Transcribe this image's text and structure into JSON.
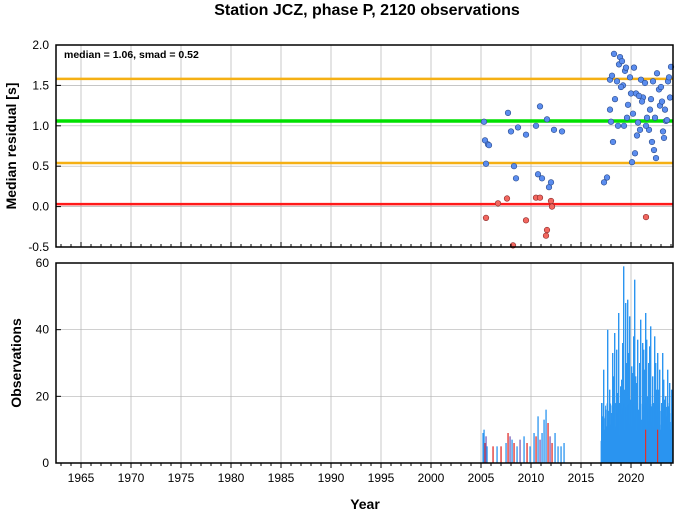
{
  "title": "Station JCZ, phase P, 2120 observations",
  "colors": {
    "median_line": "#00e000",
    "smad_lines": "#f5b014",
    "zero_line": "#ff1a1a",
    "point_blue": "#5b8def",
    "point_red": "#f2675f",
    "bar_blue": "#2b95f0",
    "bar_red": "#e0302c",
    "bar_purple": "#7a5fb8",
    "grid": "#b4b4b4"
  },
  "chart_data": [
    {
      "type": "scatter",
      "name": "median-residual-panel",
      "annotation": "median = 1.06, smad = 0.52",
      "ylabel": "Median residual [s]",
      "xlim": [
        1962.5,
        2024.2
      ],
      "ylim": [
        -0.5,
        2.0
      ],
      "yticks": [
        "-0.5",
        "0.0",
        "0.5",
        "1.0",
        "1.5",
        "2.0"
      ],
      "ytick_values": [
        -0.5,
        0.0,
        0.5,
        1.0,
        1.5,
        2.0
      ],
      "grid": true,
      "reference_lines": [
        {
          "kind": "median",
          "y": 1.06
        },
        {
          "kind": "median+smad",
          "y": 1.58
        },
        {
          "kind": "median-smad",
          "y": 0.54
        },
        {
          "kind": "zero",
          "y": 0.03
        }
      ],
      "blue_points": [
        [
          2005.3,
          1.05
        ],
        [
          2005.4,
          0.82
        ],
        [
          2005.5,
          0.53
        ],
        [
          2005.7,
          0.77
        ],
        [
          2005.8,
          0.76
        ],
        [
          2007.7,
          1.16
        ],
        [
          2008.0,
          0.93
        ],
        [
          2008.3,
          0.5
        ],
        [
          2008.5,
          0.35
        ],
        [
          2008.7,
          0.98
        ],
        [
          2009.5,
          0.89
        ],
        [
          2010.5,
          1.0
        ],
        [
          2010.7,
          0.4
        ],
        [
          2010.9,
          1.24
        ],
        [
          2011.1,
          0.35
        ],
        [
          2011.6,
          1.08
        ],
        [
          2011.8,
          0.24
        ],
        [
          2012.0,
          0.3
        ],
        [
          2012.3,
          0.95
        ],
        [
          2013.1,
          0.93
        ],
        [
          2017.3,
          0.3
        ],
        [
          2017.6,
          0.36
        ],
        [
          2017.9,
          1.57
        ],
        [
          2018.1,
          1.62
        ],
        [
          2018.3,
          1.89
        ],
        [
          2018.6,
          1.55
        ],
        [
          2018.8,
          1.76
        ],
        [
          2018.9,
          1.85
        ],
        [
          2019.1,
          1.8
        ],
        [
          2019.2,
          1.5
        ],
        [
          2019.4,
          1.68
        ],
        [
          2019.5,
          1.72
        ],
        [
          2019.7,
          1.26
        ],
        [
          2019.9,
          1.6
        ],
        [
          2020.0,
          1.4
        ],
        [
          2020.2,
          1.15
        ],
        [
          2020.3,
          1.72
        ],
        [
          2020.5,
          1.4
        ],
        [
          2020.7,
          1.04
        ],
        [
          2020.9,
          0.95
        ],
        [
          2021.0,
          1.57
        ],
        [
          2021.2,
          1.35
        ],
        [
          2021.4,
          1.53
        ],
        [
          2021.6,
          1.1
        ],
        [
          2021.8,
          0.95
        ],
        [
          2022.0,
          1.33
        ],
        [
          2022.2,
          1.55
        ],
        [
          2022.4,
          1.1
        ],
        [
          2022.5,
          0.6
        ],
        [
          2022.8,
          1.45
        ],
        [
          2023.0,
          1.48
        ],
        [
          2023.2,
          0.93
        ],
        [
          2023.4,
          1.2
        ],
        [
          2023.5,
          1.06
        ],
        [
          2023.7,
          1.55
        ],
        [
          2023.8,
          1.6
        ],
        [
          2023.9,
          1.35
        ],
        [
          2024.0,
          1.73
        ],
        [
          2017.9,
          1.2
        ],
        [
          2018.0,
          1.05
        ],
        [
          2018.4,
          1.33
        ],
        [
          2018.7,
          1.0
        ],
        [
          2019.3,
          1.0
        ],
        [
          2019.6,
          1.1
        ],
        [
          2020.1,
          0.55
        ],
        [
          2020.4,
          0.66
        ],
        [
          2020.6,
          0.88
        ],
        [
          2021.1,
          1.3
        ],
        [
          2021.5,
          1.0
        ],
        [
          2022.1,
          0.8
        ],
        [
          2022.3,
          0.7
        ],
        [
          2022.9,
          1.25
        ],
        [
          2023.1,
          1.3
        ],
        [
          2023.6,
          1.07
        ],
        [
          2018.2,
          0.8
        ],
        [
          2019.0,
          1.48
        ],
        [
          2020.8,
          1.37
        ],
        [
          2021.9,
          1.2
        ],
        [
          2022.6,
          1.65
        ],
        [
          2023.3,
          0.85
        ]
      ],
      "red_points": [
        [
          2005.5,
          -0.14
        ],
        [
          2006.7,
          0.04
        ],
        [
          2007.6,
          0.1
        ],
        [
          2008.2,
          -0.48
        ],
        [
          2009.5,
          -0.17
        ],
        [
          2010.5,
          0.11
        ],
        [
          2010.9,
          0.11
        ],
        [
          2011.5,
          -0.36
        ],
        [
          2011.6,
          -0.29
        ],
        [
          2012.0,
          0.07
        ],
        [
          2012.1,
          0.0
        ],
        [
          2021.5,
          -0.13
        ]
      ]
    },
    {
      "type": "bar",
      "name": "observations-panel",
      "ylabel": "Observations",
      "xlabel": "Year",
      "xlim": [
        1962.5,
        2024.2
      ],
      "ylim": [
        0,
        60
      ],
      "xticks": [
        "1965",
        "1970",
        "1975",
        "1980",
        "1985",
        "1990",
        "1995",
        "2000",
        "2005",
        "2010",
        "2015",
        "2020"
      ],
      "xtick_values": [
        1965,
        1970,
        1975,
        1980,
        1985,
        1990,
        1995,
        2000,
        2005,
        2010,
        2015,
        2020
      ],
      "yticks": [
        "0",
        "20",
        "40",
        "60"
      ],
      "ytick_values": [
        0,
        20,
        40,
        60
      ],
      "grid": true,
      "bars_early": [
        [
          2005.2,
          9,
          "b"
        ],
        [
          2005.3,
          10,
          "b"
        ],
        [
          2005.4,
          6,
          "r"
        ],
        [
          2005.5,
          8,
          "p"
        ],
        [
          2005.6,
          5,
          "b"
        ],
        [
          2006.2,
          5,
          "r"
        ],
        [
          2006.6,
          5,
          "b"
        ],
        [
          2007.0,
          5,
          "r"
        ],
        [
          2007.5,
          6,
          "b"
        ],
        [
          2007.7,
          9,
          "r"
        ],
        [
          2007.9,
          8,
          "p"
        ],
        [
          2008.1,
          7,
          "b"
        ],
        [
          2008.3,
          6,
          "r"
        ],
        [
          2008.6,
          5,
          "b"
        ],
        [
          2008.9,
          7,
          "p"
        ],
        [
          2009.3,
          8,
          "b"
        ],
        [
          2009.6,
          6,
          "r"
        ],
        [
          2009.9,
          5,
          "b"
        ],
        [
          2010.3,
          9,
          "b"
        ],
        [
          2010.5,
          8,
          "r"
        ],
        [
          2010.7,
          14,
          "b"
        ],
        [
          2010.9,
          7,
          "p"
        ],
        [
          2011.1,
          9,
          "b"
        ],
        [
          2011.3,
          13,
          "b"
        ],
        [
          2011.5,
          16,
          "b"
        ],
        [
          2011.7,
          12,
          "r"
        ],
        [
          2011.9,
          8,
          "p"
        ],
        [
          2012.1,
          6,
          "r"
        ],
        [
          2012.4,
          9,
          "b"
        ],
        [
          2012.7,
          5,
          "b"
        ],
        [
          2013.0,
          5,
          "b"
        ],
        [
          2013.3,
          6,
          "b"
        ]
      ],
      "bars_recent": [
        18,
        14,
        28,
        10,
        16,
        11,
        40,
        13,
        22,
        8,
        15,
        33,
        26,
        39,
        11,
        34,
        21,
        45,
        18,
        23,
        25,
        36,
        59,
        22,
        48,
        30,
        49,
        33,
        44,
        19,
        29,
        27,
        38,
        55,
        26,
        24,
        37,
        16,
        30,
        43,
        13,
        36,
        34,
        28,
        45,
        37,
        20,
        30,
        35,
        41,
        17,
        26,
        18,
        38,
        30,
        22,
        33,
        22,
        28,
        10,
        18,
        33,
        25,
        19,
        20,
        13,
        28,
        17,
        24,
        10,
        22,
        16
      ],
      "bars_recent_start": 2017.05,
      "bars_recent_step": 0.1,
      "bars_recent_red": [
        2021.45,
        2022.65
      ]
    }
  ]
}
